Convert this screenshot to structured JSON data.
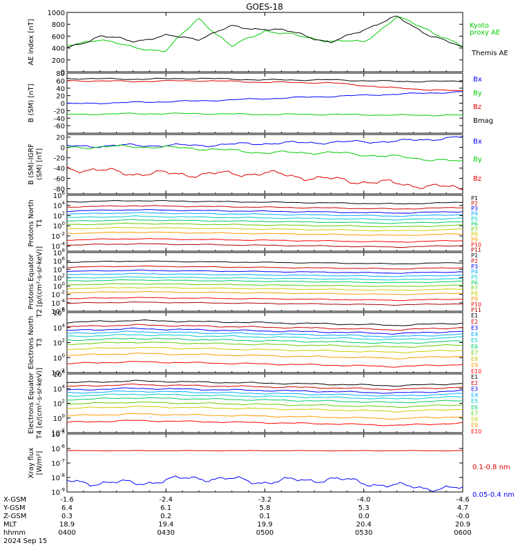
{
  "title": "GOES-18",
  "x_ticks": [
    "0400",
    "0430",
    "0500",
    "0530",
    "0600"
  ],
  "ephemeris": {
    "labels": [
      "X-GSM",
      "Y-GSM",
      "Z-GSM",
      "MLT",
      "hhmm"
    ],
    "rows": [
      [
        "-1.6",
        "6.4",
        "0.3",
        "18.9",
        "0400"
      ],
      [
        "-2.4",
        "6.1",
        "0.2",
        "19.4",
        "0430"
      ],
      [
        "-3.2",
        "5.8",
        "0.1",
        "19.9",
        "0500"
      ],
      [
        "-4.0",
        "5.3",
        "0.0",
        "20.4",
        "0530"
      ],
      [
        "-4.6",
        "4.7",
        "-0.0",
        "20.9",
        "0600"
      ]
    ],
    "date": "2024 Sep 15"
  },
  "colors": {
    "black": "#000000",
    "green": "#00cc00",
    "blue": "#0000ff",
    "red": "#dd0000",
    "ch": [
      "#000000",
      "#cc0000",
      "#0000ff",
      "#00aaff",
      "#00cccc",
      "#00cc66",
      "#66cc00",
      "#cccc00",
      "#ff9900",
      "#ff0000",
      "#aa0000"
    ]
  },
  "chart_data": [
    {
      "type": "line",
      "ylabel": "AE index [nT]",
      "ylim": [
        0,
        1000
      ],
      "yticks": [
        "0",
        "200",
        "400",
        "600",
        "800",
        "1000"
      ],
      "x": [
        "0400",
        "0410",
        "0420",
        "0430",
        "0440",
        "0450",
        "0500",
        "0510",
        "0520",
        "0530",
        "0540",
        "0550",
        "0600"
      ],
      "series": [
        {
          "name": "Themis AE",
          "values": [
            400,
            600,
            520,
            600,
            560,
            760,
            720,
            660,
            480,
            720,
            920,
            620,
            400
          ]
        },
        {
          "name": "Kyoto proxy AE",
          "values": [
            420,
            560,
            400,
            360,
            900,
            420,
            700,
            600,
            520,
            500,
            920,
            700,
            420
          ]
        }
      ],
      "legend": [
        "Kyoto proxy AE",
        "Themis AE"
      ]
    },
    {
      "type": "line",
      "ylabel": "B (SM) [nT]",
      "ylim": [
        -80,
        80
      ],
      "yticks": [
        "-60",
        "-40",
        "-20",
        "0",
        "20",
        "40",
        "60",
        "80"
      ],
      "x": [
        "0400",
        "0420",
        "0440",
        "0500",
        "0520",
        "0540",
        "0600"
      ],
      "series": [
        {
          "name": "Bx",
          "values": [
            -2,
            2,
            6,
            12,
            18,
            24,
            30
          ]
        },
        {
          "name": "By",
          "values": [
            -30,
            -28,
            -28,
            -30,
            -30,
            -32,
            -32
          ]
        },
        {
          "name": "Bz",
          "values": [
            60,
            58,
            60,
            56,
            54,
            40,
            32
          ]
        },
        {
          "name": "Bmag",
          "values": [
            66,
            64,
            66,
            62,
            62,
            58,
            58
          ]
        }
      ],
      "legend": [
        "Bx",
        "By",
        "Bz",
        "Bmag"
      ]
    },
    {
      "type": "line",
      "ylabel": "B (SM)-IGRF (SM) [nT]",
      "ylim": [
        -90,
        25
      ],
      "yticks": [
        "-80",
        "-60",
        "-40",
        "-20",
        "0",
        "20"
      ],
      "x": [
        "0400",
        "0420",
        "0440",
        "0500",
        "0520",
        "0540",
        "0600"
      ],
      "series": [
        {
          "name": "Bx",
          "values": [
            2,
            4,
            4,
            8,
            10,
            12,
            20
          ]
        },
        {
          "name": "By",
          "values": [
            0,
            2,
            -2,
            -10,
            -10,
            -18,
            -28
          ]
        },
        {
          "name": "Bz",
          "values": [
            -40,
            -50,
            -52,
            -50,
            -62,
            -70,
            -80
          ]
        }
      ],
      "legend": [
        "Bx",
        "By",
        "Bz"
      ]
    },
    {
      "type": "line",
      "ylabel": "Protons North T1",
      "log": true,
      "ylim": [
        -5,
        6
      ],
      "yticks": [
        "10^6",
        "10^4",
        "10^2",
        "10^0",
        "10^-2",
        "10^-4"
      ],
      "x": [
        "0400",
        "0500",
        "0600"
      ],
      "channels": [
        "P1",
        "P2",
        "P3",
        "P4",
        "P5",
        "P6",
        "P7",
        "P8",
        "P9",
        "P10",
        "P11"
      ],
      "levels": [
        4.5,
        3.5,
        2.7,
        2.1,
        1.4,
        0.7,
        0.0,
        -0.8,
        -1.7,
        -3.0,
        -4.0
      ]
    },
    {
      "type": "line",
      "ylabel": "Protons Equator T2 [p/(cm²-s-sr-keV)]",
      "log": true,
      "ylim": [
        -6,
        8
      ],
      "yticks": [
        "10^8",
        "10^6",
        "10^4",
        "10^2",
        "10^0",
        "10^-2",
        "10^-4",
        "10^-6"
      ],
      "x": [
        "0400",
        "0500",
        "0600"
      ],
      "channels": [
        "P1",
        "P2",
        "P3",
        "P4",
        "P5",
        "P6",
        "P7",
        "P8",
        "P9",
        "P10",
        "P11"
      ],
      "levels": [
        5.5,
        4.3,
        3.3,
        2.5,
        1.7,
        1.0,
        0.1,
        -0.8,
        -1.8,
        -3.2,
        -4.3
      ]
    },
    {
      "type": "line",
      "ylabel": "Electrons North T3",
      "log": true,
      "ylim": [
        -2,
        6
      ],
      "yticks": [
        "10^6",
        "10^4",
        "10^2",
        "10^0",
        "10^-2"
      ],
      "x": [
        "0400",
        "0500",
        "0600"
      ],
      "channels": [
        "E1",
        "E2",
        "E3",
        "E4",
        "E5",
        "E6",
        "E7",
        "E8",
        "E9",
        "E10"
      ],
      "levels": [
        4.5,
        3.9,
        3.4,
        3.0,
        2.6,
        2.1,
        1.6,
        0.9,
        0.1,
        -1.0
      ]
    },
    {
      "type": "line",
      "ylabel": "Electrons Equator T4 [e/(cm²-s-sr-keV)]",
      "log": true,
      "ylim": [
        -2,
        6
      ],
      "yticks": [
        "10^6",
        "10^4",
        "10^2",
        "10^0",
        "10^-2"
      ],
      "x": [
        "0400",
        "0500",
        "0600"
      ],
      "channels": [
        "E1",
        "E2",
        "E3",
        "E4",
        "E5",
        "E6",
        "E7",
        "E8",
        "E9",
        "E10"
      ],
      "levels": [
        4.6,
        4.1,
        3.6,
        3.2,
        2.8,
        2.3,
        1.7,
        1.1,
        0.1,
        -0.8
      ]
    },
    {
      "type": "line",
      "ylabel": "Xray flux [W/m²]",
      "log": true,
      "ylim": [
        -9,
        -5
      ],
      "yticks": [
        "10^-5",
        "10^-6",
        "10^-7",
        "10^-8",
        "10^-9"
      ],
      "x": [
        "0400",
        "0500",
        "0600"
      ],
      "series": [
        {
          "name": "0.1-0.8 nm",
          "level": -6.15
        },
        {
          "name": "0.05-0.4 nm",
          "level": -8.3
        }
      ],
      "legend": [
        "0.1-0.8 nm",
        "0.05-0.4 nm"
      ]
    }
  ]
}
